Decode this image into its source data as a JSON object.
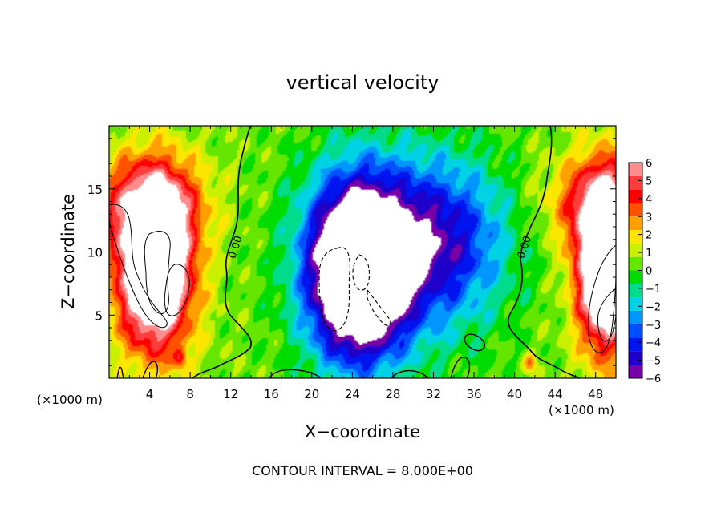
{
  "chart_data": {
    "type": "heatmap",
    "title": "vertical velocity",
    "xlabel": "X−coordinate",
    "ylabel": "Z−coordinate",
    "x_unit_left": "(×1000 m)",
    "x_unit_right": "(×1000 m)",
    "footer": "CONTOUR INTERVAL = 8.000E+00",
    "xlim": [
      0,
      50
    ],
    "ylim": [
      0,
      20
    ],
    "x_ticks": [
      4,
      8,
      12,
      16,
      20,
      24,
      28,
      32,
      36,
      40,
      44,
      48
    ],
    "x_tick_labels": [
      "4",
      "8",
      "12",
      "16",
      "20",
      "24",
      "28",
      "32",
      "36",
      "40",
      "44",
      "48"
    ],
    "y_ticks": [
      5,
      10,
      15
    ],
    "y_tick_labels": [
      "5",
      "10",
      "15"
    ],
    "colorbar": {
      "range": [
        -6,
        6
      ],
      "tick_values": [
        6,
        5,
        4,
        3,
        2,
        1,
        0,
        -1,
        -2,
        -3,
        -4,
        -5,
        -6
      ],
      "tick_labels": [
        "6",
        "5",
        "4",
        "3",
        "2",
        "1",
        "0",
        "−1",
        "−2",
        "−3",
        "−4",
        "−5",
        "−6"
      ],
      "colors": [
        "#7a00a8",
        "#1e00c8",
        "#0014f0",
        "#0050ff",
        "#0096ff",
        "#00d2e6",
        "#00dc8c",
        "#00dc00",
        "#64e600",
        "#c8f000",
        "#ffe600",
        "#ffa000",
        "#ff5000",
        "#ff0000",
        "#ff3c3c",
        "#ff8c8c"
      ]
    },
    "contour_labels": [
      {
        "text": "0.00",
        "x": 12.4,
        "y": 10.4
      },
      {
        "text": "0.00",
        "x": 40.9,
        "y": 10.4
      }
    ],
    "features": [
      {
        "type": "updraft",
        "x": 4.5,
        "z": 9,
        "sx": 3.4,
        "sz": 6,
        "amp": 11
      },
      {
        "type": "updraft",
        "x": 49,
        "z": 9,
        "sx": 2.6,
        "sz": 6,
        "amp": 11
      },
      {
        "type": "downdraft",
        "x": 24.5,
        "z": 8.5,
        "sx": 4.5,
        "sz": 6.5,
        "amp": -11
      },
      {
        "type": "downdraft",
        "x": 33,
        "z": 11,
        "sx": 6,
        "sz": 6,
        "amp": -4
      }
    ]
  }
}
